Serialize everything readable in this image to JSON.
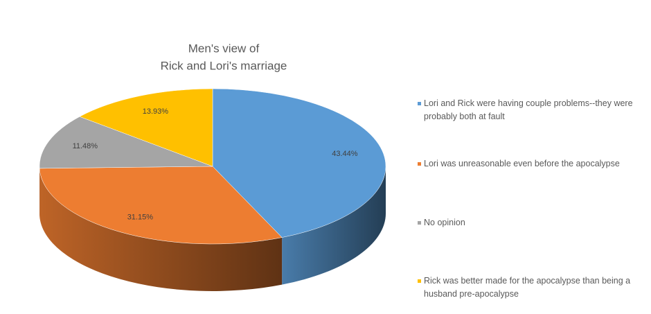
{
  "chart_data": {
    "type": "pie3d",
    "title": [
      "Men's view of",
      "Rick and Lori's marriage"
    ],
    "categories": [
      "Lori and Rick were having couple problems--they were probably both at fault",
      "Lori was unreasonable even before the apocalypse",
      "No opinion",
      "Rick was better made for the apocalypse than being a husband pre-apocalypse"
    ],
    "values": [
      43.44,
      31.15,
      11.48,
      13.93
    ],
    "value_labels": [
      "43.44%",
      "31.15%",
      "11.48%",
      "13.93%"
    ],
    "colors": [
      "#5b9bd5",
      "#ed7d31",
      "#a5a5a5",
      "#ffc000"
    ],
    "legend": "right"
  }
}
